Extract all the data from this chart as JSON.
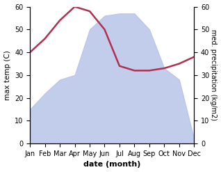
{
  "months": [
    "Jan",
    "Feb",
    "Mar",
    "Apr",
    "May",
    "Jun",
    "Jul",
    "Aug",
    "Sep",
    "Oct",
    "Nov",
    "Dec"
  ],
  "month_indices": [
    0,
    1,
    2,
    3,
    4,
    5,
    6,
    7,
    8,
    9,
    10,
    11
  ],
  "temperature": [
    40,
    46,
    54,
    60,
    58,
    50,
    34,
    32,
    32,
    33,
    35,
    38
  ],
  "precipitation": [
    15,
    22,
    28,
    30,
    50,
    56,
    57,
    57,
    50,
    33,
    28,
    2
  ],
  "temp_color": "#b03050",
  "precip_fill_color": "#b8c4e8",
  "title": "",
  "xlabel": "date (month)",
  "ylabel_left": "max temp (C)",
  "ylabel_right": "med. precipitation (kg/m2)",
  "ylim_left": [
    0,
    60
  ],
  "ylim_right": [
    0,
    60
  ],
  "yticks_left": [
    0,
    10,
    20,
    30,
    40,
    50,
    60
  ],
  "yticks_right": [
    0,
    10,
    20,
    30,
    40,
    50,
    60
  ],
  "bg_color": "#ffffff",
  "figsize": [
    3.18,
    2.47
  ],
  "dpi": 100
}
